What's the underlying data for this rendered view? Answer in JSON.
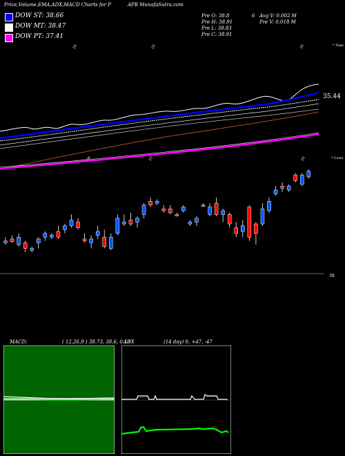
{
  "header": {
    "title": "Price,Volume,EMA,ADX,MACD Charts for P",
    "site": "APB MunafaSutra.com"
  },
  "legend": [
    {
      "label": "DOW ST: 38.66",
      "color": "#0000ff"
    },
    {
      "label": "DOW MT: 38.47",
      "color": "#ffffff"
    },
    {
      "label": "DOW PT: 37.41",
      "color": "#ff00ff"
    }
  ],
  "stats": {
    "open": "Pre  O: 38.8",
    "high": "Pre  H: 38.91",
    "low": "Pre  L: 38.83",
    "close": "Pre  C: 38.91",
    "extra": "6",
    "avg": "Avg V: 0.002  M",
    "vol": "Pre  V: 0.018  M"
  },
  "top_note": "* Tops",
  "low_note": "* Lows",
  "price_label": "35.44",
  "volume_label": "38",
  "macd": {
    "label": "MACD:",
    "params": "( 12,26,9 ) 38.73,  38.6,  0.13"
  },
  "adx": {
    "label": "ADX",
    "params": "(14  day) 0,  +47,  -47"
  },
  "colors": {
    "up": "#0055ff",
    "down": "#ff0000",
    "st": "#0000ff",
    "mt": "#ffffff",
    "pt": "#ff00ff",
    "ema_brown": "#a0522d",
    "macd_bg": "#006400",
    "adx_signal": "#00ff00"
  },
  "chart_data": {
    "type": "candlestick",
    "series": [
      {
        "name": "DOW ST",
        "value": 38.66
      },
      {
        "name": "DOW MT",
        "value": 38.47
      },
      {
        "name": "DOW PT",
        "value": 37.41
      }
    ],
    "candles": [
      {
        "o": 37.95,
        "h": 38.1,
        "l": 37.9,
        "c": 38.0,
        "dir": "up"
      },
      {
        "o": 38.05,
        "h": 38.15,
        "l": 37.95,
        "c": 37.98,
        "dir": "down"
      },
      {
        "o": 37.9,
        "h": 38.2,
        "l": 37.85,
        "c": 38.1,
        "dir": "up"
      },
      {
        "o": 37.95,
        "h": 38.0,
        "l": 37.7,
        "c": 37.8,
        "dir": "down"
      },
      {
        "o": 37.75,
        "h": 37.85,
        "l": 37.7,
        "c": 37.8,
        "dir": "up"
      },
      {
        "o": 37.95,
        "h": 38.1,
        "l": 37.8,
        "c": 38.05,
        "dir": "up"
      },
      {
        "o": 38.1,
        "h": 38.25,
        "l": 38.0,
        "c": 38.2,
        "dir": "up"
      },
      {
        "o": 38.1,
        "h": 38.2,
        "l": 38.05,
        "c": 38.15,
        "dir": "up"
      },
      {
        "o": 38.25,
        "h": 38.4,
        "l": 38.05,
        "c": 38.1,
        "dir": "down"
      },
      {
        "o": 38.3,
        "h": 38.45,
        "l": 38.2,
        "c": 38.4,
        "dir": "up"
      },
      {
        "o": 38.4,
        "h": 38.7,
        "l": 38.35,
        "c": 38.55,
        "dir": "up"
      },
      {
        "o": 38.5,
        "h": 38.6,
        "l": 38.3,
        "c": 38.35,
        "dir": "down"
      },
      {
        "o": 38.05,
        "h": 38.2,
        "l": 37.95,
        "c": 38.0,
        "dir": "down"
      },
      {
        "o": 37.95,
        "h": 38.15,
        "l": 37.8,
        "c": 38.05,
        "dir": "up"
      },
      {
        "o": 38.15,
        "h": 38.4,
        "l": 38.05,
        "c": 38.25,
        "dir": "up"
      },
      {
        "o": 38.1,
        "h": 38.3,
        "l": 37.8,
        "c": 37.85,
        "dir": "down"
      },
      {
        "o": 37.8,
        "h": 38.2,
        "l": 37.75,
        "c": 38.1,
        "dir": "up"
      },
      {
        "o": 38.2,
        "h": 38.7,
        "l": 38.15,
        "c": 38.6,
        "dir": "up"
      },
      {
        "o": 38.45,
        "h": 38.7,
        "l": 38.4,
        "c": 38.5,
        "dir": "up"
      },
      {
        "o": 38.55,
        "h": 38.75,
        "l": 38.4,
        "c": 38.45,
        "dir": "down"
      },
      {
        "o": 38.5,
        "h": 38.65,
        "l": 38.35,
        "c": 38.6,
        "dir": "up"
      },
      {
        "o": 38.7,
        "h": 39.0,
        "l": 38.6,
        "c": 38.95,
        "dir": "up"
      },
      {
        "o": 39.05,
        "h": 39.15,
        "l": 38.9,
        "c": 38.95,
        "dir": "down"
      },
      {
        "o": 39.0,
        "h": 39.1,
        "l": 38.95,
        "c": 39.05,
        "dir": "up"
      },
      {
        "o": 38.85,
        "h": 38.95,
        "l": 38.75,
        "c": 38.8,
        "dir": "down"
      },
      {
        "o": 38.85,
        "h": 38.95,
        "l": 38.7,
        "c": 38.75,
        "dir": "down"
      },
      {
        "o": 38.7,
        "h": 38.75,
        "l": 38.65,
        "c": 38.7,
        "dir": "down"
      },
      {
        "o": 38.8,
        "h": 38.95,
        "l": 38.75,
        "c": 38.9,
        "dir": "up"
      },
      {
        "o": 38.45,
        "h": 38.55,
        "l": 38.4,
        "c": 38.5,
        "dir": "up"
      },
      {
        "o": 38.5,
        "h": 38.65,
        "l": 38.4,
        "c": 38.6,
        "dir": "up"
      },
      {
        "o": 38.95,
        "h": 39.0,
        "l": 38.9,
        "c": 38.95,
        "dir": "up"
      },
      {
        "o": 38.7,
        "h": 39.0,
        "l": 38.65,
        "c": 38.9,
        "dir": "up"
      },
      {
        "o": 39.0,
        "h": 39.15,
        "l": 38.65,
        "c": 38.7,
        "dir": "down"
      },
      {
        "o": 38.7,
        "h": 38.85,
        "l": 38.5,
        "c": 38.8,
        "dir": "up"
      },
      {
        "o": 38.7,
        "h": 38.75,
        "l": 38.35,
        "c": 38.45,
        "dir": "down"
      },
      {
        "o": 38.35,
        "h": 38.5,
        "l": 38.1,
        "c": 38.2,
        "dir": "down"
      },
      {
        "o": 38.25,
        "h": 38.55,
        "l": 38.1,
        "c": 38.4,
        "dir": "up"
      },
      {
        "o": 38.9,
        "h": 38.95,
        "l": 38.0,
        "c": 38.1,
        "dir": "down"
      },
      {
        "o": 38.45,
        "h": 38.5,
        "l": 37.9,
        "c": 38.2,
        "dir": "down"
      },
      {
        "o": 38.45,
        "h": 39.0,
        "l": 38.4,
        "c": 38.85,
        "dir": "up"
      },
      {
        "o": 38.8,
        "h": 39.15,
        "l": 38.75,
        "c": 39.05,
        "dir": "up"
      },
      {
        "o": 39.25,
        "h": 39.45,
        "l": 39.2,
        "c": 39.35,
        "dir": "up"
      },
      {
        "o": 39.45,
        "h": 39.55,
        "l": 39.3,
        "c": 39.4,
        "dir": "down"
      },
      {
        "o": 39.35,
        "h": 39.5,
        "l": 39.3,
        "c": 39.45,
        "dir": "up"
      },
      {
        "o": 39.75,
        "h": 39.8,
        "l": 39.55,
        "c": 39.6,
        "dir": "down"
      },
      {
        "o": 39.5,
        "h": 39.8,
        "l": 39.45,
        "c": 39.75,
        "dir": "up"
      },
      {
        "o": 39.7,
        "h": 39.9,
        "l": 39.65,
        "c": 39.85,
        "dir": "up"
      }
    ]
  }
}
